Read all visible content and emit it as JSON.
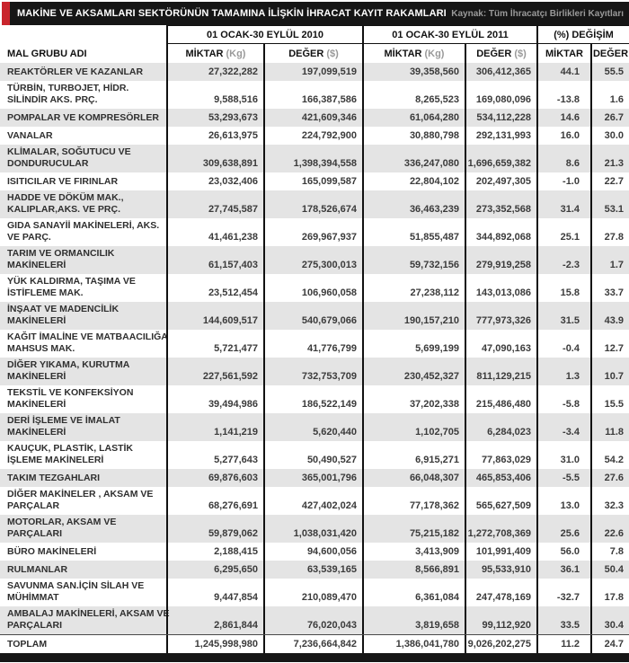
{
  "title_bar": {
    "title": "MAKİNE VE AKSAMLARI SEKTÖRÜNÜN TAMAMINA İLİŞKİN İHRACAT KAYIT RAKAMLARI",
    "source": "Kaynak: Tüm İhracatçı Birlikleri Kayıtları"
  },
  "colors": {
    "accent_red": "#c9252c",
    "bar_black": "#161616",
    "stripe_gray": "#e4e4e4"
  },
  "table": {
    "name_header": "MAL GRUBU ADI",
    "groups": [
      {
        "label": "01 OCAK-30 EYLÜL 2010"
      },
      {
        "label": "01 OCAK-30 EYLÜL 2011"
      },
      {
        "label": "(%) DEĞİŞİM"
      }
    ],
    "sub_headers": [
      {
        "label": "MİKTAR",
        "unit": "(Kg)"
      },
      {
        "label": "DEĞER",
        "unit": "($)"
      },
      {
        "label": "MİKTAR",
        "unit": "(Kg)"
      },
      {
        "label": "DEĞER",
        "unit": "($)"
      },
      {
        "label": "MİKTAR",
        "unit": ""
      },
      {
        "label": "DEĞER",
        "unit": ""
      }
    ],
    "rows": [
      {
        "name_lines": [
          "REAKTÖRLER VE KAZANLAR"
        ],
        "values": [
          "27,322,282",
          "197,099,519",
          "39,358,560",
          "306,412,365",
          "44.1",
          "55.5"
        ]
      },
      {
        "name_lines": [
          "TÜRBİN, TURBOJET, HİDR.",
          "SİLİNDİR AKS. PRÇ."
        ],
        "values": [
          "9,588,516",
          "166,387,586",
          "8,265,523",
          "169,080,096",
          "-13.8",
          "1.6"
        ]
      },
      {
        "name_lines": [
          "POMPALAR VE KOMPRESÖRLER"
        ],
        "values": [
          "53,293,673",
          "421,609,346",
          "61,064,280",
          "534,112,228",
          "14.6",
          "26.7"
        ]
      },
      {
        "name_lines": [
          "VANALAR"
        ],
        "values": [
          "26,613,975",
          "224,792,900",
          "30,880,798",
          "292,131,993",
          "16.0",
          "30.0"
        ]
      },
      {
        "name_lines": [
          "KLİMALAR, SOĞUTUCU VE",
          "DONDURUCULAR"
        ],
        "values": [
          "309,638,891",
          "1,398,394,558",
          "336,247,080",
          "1,696,659,382",
          "8.6",
          "21.3"
        ]
      },
      {
        "name_lines": [
          "ISITICILAR VE FIRINLAR"
        ],
        "values": [
          "23,032,406",
          "165,099,587",
          "22,804,102",
          "202,497,305",
          "-1.0",
          "22.7"
        ]
      },
      {
        "name_lines": [
          "HADDE VE DÖKÜM MAK.,",
          "KALIPLAR,AKS. VE PRÇ."
        ],
        "values": [
          "27,745,587",
          "178,526,674",
          "36,463,239",
          "273,352,568",
          "31.4",
          "53.1"
        ]
      },
      {
        "name_lines": [
          "GIDA SANAYİİ MAKİNELERİ, AKS.",
          "VE PARÇ."
        ],
        "values": [
          "41,461,238",
          "269,967,937",
          "51,855,487",
          "344,892,068",
          "25.1",
          "27.8"
        ]
      },
      {
        "name_lines": [
          "TARIM VE ORMANCILIK",
          "MAKİNELERİ"
        ],
        "values": [
          "61,157,403",
          "275,300,013",
          "59,732,156",
          "279,919,258",
          "-2.3",
          "1.7"
        ]
      },
      {
        "name_lines": [
          "YÜK KALDIRMA, TAŞIMA VE",
          "İSTİFLEME MAK."
        ],
        "values": [
          "23,512,454",
          "106,960,058",
          "27,238,112",
          "143,013,086",
          "15.8",
          "33.7"
        ]
      },
      {
        "name_lines": [
          "İNŞAAT VE MADENCİLİK",
          "MAKİNELERİ"
        ],
        "values": [
          "144,609,517",
          "540,679,066",
          "190,157,210",
          "777,973,326",
          "31.5",
          "43.9"
        ]
      },
      {
        "name_lines": [
          "KAĞIT İMALİNE VE MATBAACILIĞA",
          "MAHSUS MAK."
        ],
        "values": [
          "5,721,477",
          "41,776,799",
          "5,699,199",
          "47,090,163",
          "-0.4",
          "12.7"
        ]
      },
      {
        "name_lines": [
          "DİĞER YIKAMA, KURUTMA",
          "MAKİNELERİ"
        ],
        "values": [
          "227,561,592",
          "732,753,709",
          "230,452,327",
          "811,129,215",
          "1.3",
          "10.7"
        ]
      },
      {
        "name_lines": [
          "TEKSTİL VE KONFEKSİYON",
          "MAKİNELERİ"
        ],
        "values": [
          "39,494,986",
          "186,522,149",
          "37,202,338",
          "215,486,480",
          "-5.8",
          "15.5"
        ]
      },
      {
        "name_lines": [
          "DERİ İŞLEME VE İMALAT",
          "MAKİNELERİ"
        ],
        "values": [
          "1,141,219",
          "5,620,440",
          "1,102,705",
          "6,284,023",
          "-3.4",
          "11.8"
        ]
      },
      {
        "name_lines": [
          "KAUÇUK, PLASTİK, LASTİK",
          "İŞLEME MAKİNELERİ"
        ],
        "values": [
          "5,277,643",
          "50,490,527",
          "6,915,271",
          "77,863,029",
          "31.0",
          "54.2"
        ]
      },
      {
        "name_lines": [
          "TAKIM TEZGAHLARI"
        ],
        "values": [
          "69,876,603",
          "365,001,796",
          "66,048,307",
          "465,853,406",
          "-5.5",
          "27.6"
        ]
      },
      {
        "name_lines": [
          "DİĞER MAKİNELER , AKSAM VE",
          "PARÇALAR"
        ],
        "values": [
          "68,276,691",
          "427,402,024",
          "77,178,362",
          "565,627,509",
          "13.0",
          "32.3"
        ]
      },
      {
        "name_lines": [
          "MOTORLAR, AKSAM VE",
          "PARÇALARI"
        ],
        "values": [
          "59,879,062",
          "1,038,031,420",
          "75,215,182",
          "1,272,708,369",
          "25.6",
          "22.6"
        ]
      },
      {
        "name_lines": [
          "BÜRO  MAKİNELERİ"
        ],
        "values": [
          "2,188,415",
          "94,600,056",
          "3,413,909",
          "101,991,409",
          "56.0",
          "7.8"
        ]
      },
      {
        "name_lines": [
          "RULMANLAR"
        ],
        "values": [
          "6,295,650",
          "63,539,165",
          "8,566,891",
          "95,533,910",
          "36.1",
          "50.4"
        ]
      },
      {
        "name_lines": [
          "SAVUNMA SAN.İÇİN SİLAH VE",
          "MÜHİMMAT"
        ],
        "values": [
          "9,447,854",
          "210,089,470",
          "6,361,084",
          "247,478,169",
          "-32.7",
          "17.8"
        ]
      },
      {
        "name_lines": [
          "AMBALAJ MAKİNELERİ, AKSAM VE",
          "PARÇALARI"
        ],
        "values": [
          "2,861,844",
          "76,020,043",
          "3,819,658",
          "99,112,920",
          "33.5",
          "30.4"
        ]
      },
      {
        "name_lines": [
          "TOPLAM"
        ],
        "values": [
          "1,245,998,980",
          "7,236,664,842",
          "1,386,041,780",
          "9,026,202,275",
          "11.2",
          "24.7"
        ]
      }
    ]
  }
}
